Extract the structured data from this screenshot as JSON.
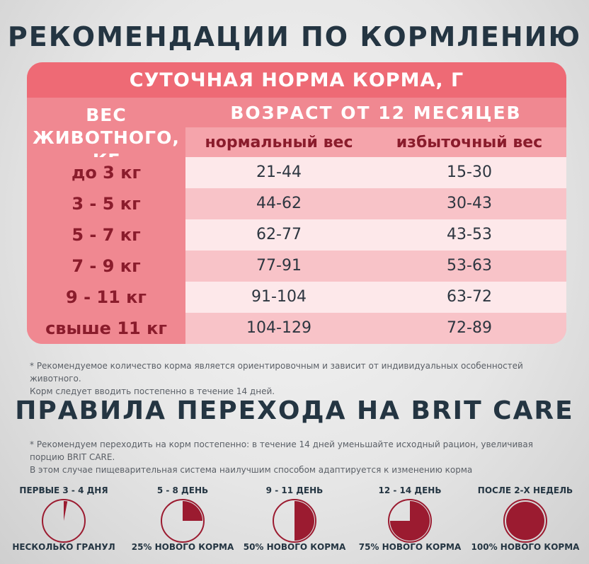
{
  "title": "РЕКОМЕНДАЦИИ ПО КОРМЛЕНИЮ",
  "table": {
    "header": "СУТОЧНАЯ НОРМА КОРМА, Г",
    "weight_header_line1": "ВЕС",
    "weight_header_line2": "ЖИВОТНОГО, КГ",
    "age_header": "ВОЗРАСТ ОТ 12 МЕСЯЦЕВ",
    "col1": "нормальный вес",
    "col2": "избыточный вес",
    "rows": [
      {
        "weight": "до 3 кг",
        "normal": "21-44",
        "over": "15-30"
      },
      {
        "weight": "3 - 5 кг",
        "normal": "44-62",
        "over": "30-43"
      },
      {
        "weight": "5 - 7 кг",
        "normal": "62-77",
        "over": "43-53"
      },
      {
        "weight": "7 - 9 кг",
        "normal": "77-91",
        "over": "53-63"
      },
      {
        "weight": "9 - 11 кг",
        "normal": "91-104",
        "over": "63-72"
      },
      {
        "weight": "свыше 11 кг",
        "normal": "104-129",
        "over": "72-89"
      }
    ]
  },
  "note1_line1": "* Рекомендуемое количество корма является ориентировочным и зависит от индивидуальных особенностей животного.",
  "note1_line2": "Корм следует вводить постепенно в течение 14 дней.",
  "title2": "ПРАВИЛА ПЕРЕХОДА НА BRIT CARE",
  "note2_line1": "* Рекомендуем переходить на корм постепенно: в течение 14 дней уменьшайте исходный рацион, увеличивая порцию BRIT CARE.",
  "note2_line2": "В этом случае пищеварительная система наилучшим способом адаптируется к изменению корма",
  "colors": {
    "accent": "#9b1b30",
    "header": "#ee6a75",
    "title": "#243542"
  },
  "stages": [
    {
      "top": "ПЕРВЫЕ 3 - 4 ДНЯ",
      "bottom": "НЕСКОЛЬКО ГРАНУЛ",
      "fraction": 0.03
    },
    {
      "top": "5 - 8 ДЕНЬ",
      "bottom": "25% НОВОГО КОРМА",
      "fraction": 0.25
    },
    {
      "top": "9 - 11 ДЕНЬ",
      "bottom": "50% НОВОГО КОРМА",
      "fraction": 0.5
    },
    {
      "top": "12 - 14 ДЕНЬ",
      "bottom": "75% НОВОГО КОРМА",
      "fraction": 0.75
    },
    {
      "top": "ПОСЛЕ 2-Х НЕДЕЛЬ",
      "bottom": "100% НОВОГО КОРМА",
      "fraction": 1.0
    }
  ]
}
